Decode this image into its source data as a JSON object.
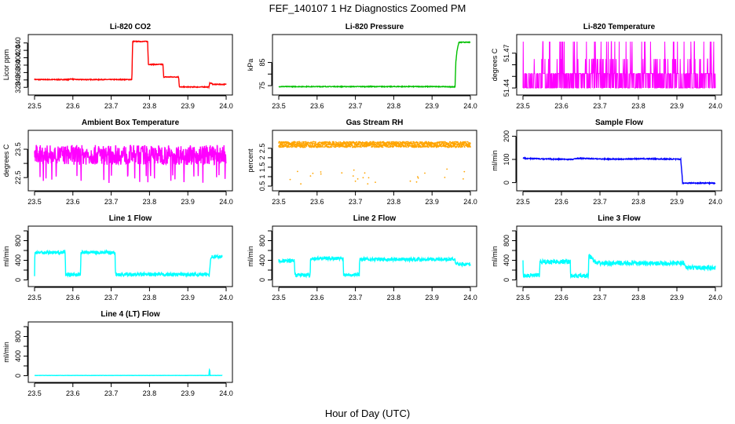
{
  "title": "FEF_140107  1 Hz Diagnostics Zoomed PM",
  "xlabel": "Hour of Day (UTC)",
  "chart_data": [
    {
      "type": "line",
      "title": "Li-820 CO2",
      "ylabel": "Licor ppm",
      "color": "#ff0000",
      "xlim": [
        23.5,
        24.0
      ],
      "ylim": [
        312,
        450
      ],
      "xticks": [
        23.5,
        23.6,
        23.7,
        23.8,
        23.9,
        24.0
      ],
      "yticks": [
        320,
        340,
        360,
        380,
        400,
        420,
        440
      ],
      "noise": 1,
      "x": [
        23.5,
        23.59,
        23.592,
        23.61,
        23.754,
        23.756,
        23.795,
        23.797,
        23.835,
        23.837,
        23.876,
        23.878,
        23.955,
        23.957,
        23.963,
        23.965,
        24.0
      ],
      "y": [
        341,
        341,
        343,
        341,
        341,
        444,
        444,
        382,
        382,
        348,
        348,
        321,
        321,
        331,
        331,
        328,
        328
      ]
    },
    {
      "type": "line",
      "title": "Li-820 Pressure",
      "ylabel": "kPa",
      "color": "#00c000",
      "xlim": [
        23.5,
        24.0
      ],
      "ylim": [
        73,
        95
      ],
      "xticks": [
        23.5,
        23.6,
        23.7,
        23.8,
        23.9,
        24.0
      ],
      "yticks": [
        75,
        80,
        85
      ],
      "yticklabels": [
        "75",
        "",
        "85"
      ],
      "noise": 0.15,
      "x": [
        23.5,
        23.93,
        23.945,
        23.96,
        23.962,
        23.965,
        23.97,
        24.0
      ],
      "y": [
        74.6,
        74.6,
        74.5,
        74.5,
        85,
        90,
        93.7,
        93.7
      ]
    },
    {
      "type": "line",
      "title": "Li-820 Temperature",
      "ylabel": "degrees C",
      "color": "#ff00ff",
      "xlim": [
        23.5,
        24.0
      ],
      "ylim": [
        51.438,
        51.482
      ],
      "xticks": [
        23.5,
        23.6,
        23.7,
        23.8,
        23.9,
        24.0
      ],
      "yticks": [
        51.44,
        51.45,
        51.46,
        51.47
      ],
      "yticklabels": [
        "51.44",
        "",
        "",
        "51.47"
      ],
      "levels": [
        51.44,
        51.4525,
        51.465,
        51.48
      ],
      "x": [
        23.5,
        23.6,
        23.7,
        23.8,
        23.9,
        24.0
      ],
      "y": [
        51.4525,
        51.4525,
        51.4525,
        51.4525,
        51.4525,
        51.4525
      ]
    },
    {
      "type": "line",
      "title": "Ambient Box Temperature",
      "ylabel": "degrees C",
      "color": "#ff00ff",
      "xlim": [
        23.5,
        24.0
      ],
      "ylim": [
        22.2,
        24.0
      ],
      "xticks": [
        23.5,
        23.6,
        23.7,
        23.8,
        23.9,
        24.0
      ],
      "yticks": [
        22.5,
        23.0,
        23.5
      ],
      "yticklabels": [
        "22.5",
        "",
        "23.5"
      ],
      "noise": 0.35,
      "spikes": [
        22.3,
        22.6
      ],
      "x": [
        23.5,
        24.0
      ],
      "y": [
        23.3,
        23.3
      ]
    },
    {
      "type": "scatter",
      "title": "Gas Stream RH",
      "ylabel": "percent",
      "color": "#ffa500",
      "xlim": [
        23.5,
        24.0
      ],
      "ylim": [
        0.5,
        3.2
      ],
      "xticks": [
        23.5,
        23.6,
        23.7,
        23.8,
        23.9,
        24.0
      ],
      "yticks": [
        0.5,
        1.0,
        1.5,
        2.0,
        2.5
      ],
      "yticklabels": [
        "0.5",
        "1",
        "1.5",
        "2",
        "2.5"
      ],
      "noise": 0.15,
      "spikes": [
        0.6,
        1.4
      ],
      "x": [
        23.5,
        24.0
      ],
      "y": [
        2.7,
        2.7
      ]
    },
    {
      "type": "line",
      "title": "Sample Flow",
      "ylabel": "ml/min",
      "color": "#0000ff",
      "xlim": [
        23.5,
        24.0
      ],
      "ylim": [
        -15,
        205
      ],
      "xticks": [
        23.5,
        23.6,
        23.7,
        23.8,
        23.9,
        24.0
      ],
      "yticks": [
        0,
        100,
        200
      ],
      "noise": 2,
      "x": [
        23.5,
        23.51,
        23.56,
        23.63,
        23.64,
        23.7,
        23.75,
        23.8,
        23.9,
        23.91,
        23.915,
        24.0
      ],
      "y": [
        106,
        104,
        102,
        100,
        105,
        102,
        101,
        103,
        101,
        101,
        -2,
        -2
      ]
    },
    {
      "type": "line",
      "title": "Line 1 Flow",
      "ylabel": "ml/min",
      "color": "#00ffff",
      "xlim": [
        23.5,
        24.0
      ],
      "ylim": [
        -40,
        1000
      ],
      "xticks": [
        23.5,
        23.6,
        23.7,
        23.8,
        23.9,
        24.0
      ],
      "yticks": [
        0,
        200,
        400,
        600,
        800,
        1000
      ],
      "yticklabels": [
        "0",
        "",
        "400",
        "",
        "800",
        ""
      ],
      "noise": 35,
      "x": [
        23.5,
        23.501,
        23.58,
        23.581,
        23.62,
        23.621,
        23.71,
        23.711,
        23.955,
        23.956,
        23.96,
        23.99
      ],
      "y": [
        110,
        560,
        560,
        110,
        110,
        560,
        560,
        110,
        110,
        110,
        470,
        470
      ]
    },
    {
      "type": "line",
      "title": "Line 2 Flow",
      "ylabel": "ml/min",
      "color": "#00ffff",
      "xlim": [
        23.5,
        24.0
      ],
      "ylim": [
        -40,
        1000
      ],
      "xticks": [
        23.5,
        23.6,
        23.7,
        23.8,
        23.9,
        24.0
      ],
      "yticks": [
        0,
        200,
        400,
        600,
        800,
        1000
      ],
      "yticklabels": [
        "0",
        "",
        "400",
        "",
        "800",
        ""
      ],
      "noise": 35,
      "x": [
        23.5,
        23.541,
        23.542,
        23.582,
        23.583,
        23.668,
        23.669,
        23.71,
        23.711,
        23.96,
        23.961,
        24.0
      ],
      "y": [
        390,
        390,
        100,
        100,
        440,
        440,
        110,
        110,
        420,
        420,
        320,
        320
      ]
    },
    {
      "type": "line",
      "title": "Line 3 Flow",
      "ylabel": "ml/min",
      "color": "#00ffff",
      "xlim": [
        23.5,
        24.0
      ],
      "ylim": [
        -40,
        1000
      ],
      "xticks": [
        23.5,
        23.6,
        23.7,
        23.8,
        23.9,
        24.0
      ],
      "yticks": [
        0,
        200,
        400,
        600,
        800,
        1000
      ],
      "yticklabels": [
        "0",
        "",
        "400",
        "",
        "800",
        ""
      ],
      "noise": 45,
      "x": [
        23.5,
        23.501,
        23.543,
        23.544,
        23.623,
        23.624,
        23.67,
        23.671,
        23.69,
        23.92,
        23.921,
        24.0
      ],
      "y": [
        360,
        90,
        90,
        370,
        370,
        80,
        80,
        520,
        340,
        340,
        250,
        250
      ]
    },
    {
      "type": "line",
      "title": "Line 4 (LT) Flow",
      "ylabel": "ml/min",
      "color": "#00ffff",
      "xlim": [
        23.5,
        24.0
      ],
      "ylim": [
        -40,
        1000
      ],
      "xticks": [
        23.5,
        23.6,
        23.7,
        23.8,
        23.9,
        24.0
      ],
      "yticks": [
        0,
        200,
        400,
        600,
        800,
        1000
      ],
      "yticklabels": [
        "0",
        "",
        "400",
        "",
        "800",
        ""
      ],
      "noise": 2,
      "x": [
        23.5,
        23.955,
        23.956,
        23.957,
        23.958,
        23.99
      ],
      "y": [
        5,
        5,
        120,
        120,
        5,
        5
      ]
    }
  ]
}
